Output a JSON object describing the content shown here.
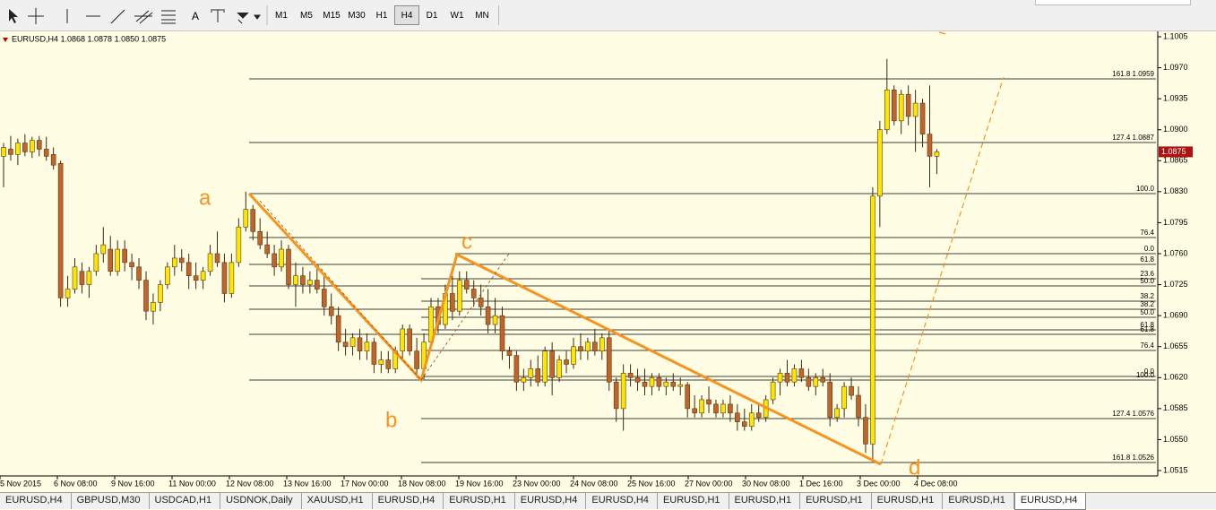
{
  "toolbar": {
    "text_tool": "A",
    "timeframes": [
      "M1",
      "M5",
      "M15",
      "M30",
      "H1",
      "H4",
      "D1",
      "W1",
      "MN"
    ],
    "active_timeframe": 5
  },
  "chart_data": {
    "type": "candlestick",
    "title": "EURUSD,H4 1.0868 1.0878 1.0850 1.0875",
    "ylim": [
      1.0515,
      1.1005
    ],
    "yticks": [
      1.1005,
      {
        "value": 1.097,
        "label": "1.0970"
      },
      1.0935,
      {
        "value": 1.09,
        "label": "1.0900"
      },
      1.0865,
      {
        "value": 1.083,
        "label": "1.0830"
      },
      1.0795,
      {
        "value": 1.076,
        "label": "1.0760"
      },
      1.0725,
      {
        "value": 1.069,
        "label": "1.0690"
      },
      1.0655,
      {
        "value": 1.062,
        "label": "1.0620"
      },
      1.0585,
      {
        "value": 1.055,
        "label": "1.0550"
      },
      1.0515
    ],
    "current_price": 1.0875,
    "x_labels": [
      "5 Nov 2015",
      "6 Nov 08:00",
      "9 Nov 16:00",
      "11 Nov 00:00",
      "12 Nov 08:00",
      "13 Nov 16:00",
      "17 Nov 00:00",
      "18 Nov 08:00",
      "19 Nov 16:00",
      "23 Nov 00:00",
      "24 Nov 08:00",
      "25 Nov 16:00",
      "27 Nov 00:00",
      "30 Nov 08:00",
      "1 Dec 16:00",
      "3 Dec 00:00",
      "4 Dec 08:00"
    ],
    "bull_color": "#ffe600",
    "bear_color": "#c0642c",
    "pattern_color": "#f7931e",
    "ohlc": [
      [
        1.087,
        1.0885,
        1.0835,
        1.088
      ],
      [
        1.0878,
        1.0893,
        1.0865,
        1.0872
      ],
      [
        1.0872,
        1.089,
        1.086,
        1.0885
      ],
      [
        1.0885,
        1.0895,
        1.087,
        1.0875
      ],
      [
        1.0875,
        1.0892,
        1.0868,
        1.0888
      ],
      [
        1.0888,
        1.0893,
        1.087,
        1.0878
      ],
      [
        1.0878,
        1.0892,
        1.0865,
        1.087
      ],
      [
        1.0872,
        1.088,
        1.0855,
        1.086
      ],
      [
        1.0862,
        1.0865,
        1.07,
        1.071
      ],
      [
        1.071,
        1.0735,
        1.07,
        1.072
      ],
      [
        1.072,
        1.0755,
        1.0715,
        1.0745
      ],
      [
        1.074,
        1.075,
        1.0715,
        1.0725
      ],
      [
        1.0725,
        1.0745,
        1.071,
        1.074
      ],
      [
        1.074,
        1.077,
        1.0735,
        1.076
      ],
      [
        1.076,
        1.079,
        1.075,
        1.077
      ],
      [
        1.0765,
        1.078,
        1.0735,
        1.074
      ],
      [
        1.074,
        1.0775,
        1.0735,
        1.0765
      ],
      [
        1.0765,
        1.0775,
        1.074,
        1.075
      ],
      [
        1.075,
        1.076,
        1.073,
        1.0745
      ],
      [
        1.0745,
        1.0755,
        1.072,
        1.073
      ],
      [
        1.073,
        1.074,
        1.0685,
        1.0695
      ],
      [
        1.0695,
        1.0715,
        1.068,
        1.0705
      ],
      [
        1.0705,
        1.073,
        1.0695,
        1.0725
      ],
      [
        1.0725,
        1.075,
        1.072,
        1.0745
      ],
      [
        1.0745,
        1.077,
        1.0735,
        1.0755
      ],
      [
        1.0755,
        1.0765,
        1.074,
        1.075
      ],
      [
        1.075,
        1.076,
        1.072,
        1.0735
      ],
      [
        1.0735,
        1.075,
        1.072,
        1.073
      ],
      [
        1.073,
        1.0745,
        1.072,
        1.074
      ],
      [
        1.074,
        1.077,
        1.0735,
        1.076
      ],
      [
        1.076,
        1.0785,
        1.0745,
        1.075
      ],
      [
        1.075,
        1.076,
        1.0705,
        1.0715
      ],
      [
        1.0715,
        1.076,
        1.071,
        1.075
      ],
      [
        1.075,
        1.08,
        1.0745,
        1.079
      ],
      [
        1.079,
        1.083,
        1.0785,
        1.081
      ],
      [
        1.081,
        1.0815,
        1.0775,
        1.0785
      ],
      [
        1.0785,
        1.08,
        1.0765,
        1.077
      ],
      [
        1.077,
        1.0785,
        1.0755,
        1.076
      ],
      [
        1.076,
        1.077,
        1.0735,
        1.0745
      ],
      [
        1.0745,
        1.0775,
        1.074,
        1.0765
      ],
      [
        1.0765,
        1.077,
        1.072,
        1.0725
      ],
      [
        1.0725,
        1.075,
        1.07,
        1.0735
      ],
      [
        1.0735,
        1.0745,
        1.0715,
        1.0725
      ],
      [
        1.0725,
        1.074,
        1.0715,
        1.073
      ],
      [
        1.073,
        1.0745,
        1.0715,
        1.072
      ],
      [
        1.072,
        1.0735,
        1.069,
        1.07
      ],
      [
        1.07,
        1.0715,
        1.068,
        1.069
      ],
      [
        1.069,
        1.07,
        1.065,
        1.066
      ],
      [
        1.066,
        1.0675,
        1.0645,
        1.0655
      ],
      [
        1.0655,
        1.067,
        1.0645,
        1.0665
      ],
      [
        1.0665,
        1.0675,
        1.064,
        1.065
      ],
      [
        1.065,
        1.067,
        1.064,
        1.066
      ],
      [
        1.066,
        1.0665,
        1.0625,
        1.0635
      ],
      [
        1.0635,
        1.065,
        1.0625,
        1.064
      ],
      [
        1.064,
        1.065,
        1.0625,
        1.063
      ],
      [
        1.063,
        1.0655,
        1.0625,
        1.065
      ],
      [
        1.065,
        1.068,
        1.064,
        1.0675
      ],
      [
        1.0675,
        1.068,
        1.0645,
        1.065
      ],
      [
        1.065,
        1.0665,
        1.062,
        1.063
      ],
      [
        1.063,
        1.067,
        1.0618,
        1.066
      ],
      [
        1.066,
        1.071,
        1.0655,
        1.07
      ],
      [
        1.07,
        1.071,
        1.067,
        1.068
      ],
      [
        1.068,
        1.0725,
        1.0675,
        1.0715
      ],
      [
        1.0715,
        1.0735,
        1.0685,
        1.0695
      ],
      [
        1.0695,
        1.074,
        1.069,
        1.073
      ],
      [
        1.073,
        1.074,
        1.0715,
        1.072
      ],
      [
        1.072,
        1.073,
        1.07,
        1.071
      ],
      [
        1.071,
        1.0725,
        1.069,
        1.07
      ],
      [
        1.07,
        1.072,
        1.067,
        1.068
      ],
      [
        1.068,
        1.071,
        1.067,
        1.069
      ],
      [
        1.069,
        1.07,
        1.064,
        1.065
      ],
      [
        1.065,
        1.0655,
        1.063,
        1.0645
      ],
      [
        1.0645,
        1.065,
        1.0605,
        1.0615
      ],
      [
        1.0615,
        1.063,
        1.0605,
        1.062
      ],
      [
        1.062,
        1.064,
        1.061,
        1.063
      ],
      [
        1.063,
        1.0645,
        1.061,
        1.0615
      ],
      [
        1.0615,
        1.0655,
        1.061,
        1.065
      ],
      [
        1.065,
        1.066,
        1.06,
        1.062
      ],
      [
        1.062,
        1.0645,
        1.0615,
        1.064
      ],
      [
        1.064,
        1.065,
        1.0625,
        1.0635
      ],
      [
        1.0635,
        1.0665,
        1.063,
        1.0655
      ],
      [
        1.0655,
        1.067,
        1.064,
        1.065
      ],
      [
        1.065,
        1.0665,
        1.064,
        1.066
      ],
      [
        1.066,
        1.0675,
        1.0645,
        1.065
      ],
      [
        1.065,
        1.067,
        1.064,
        1.0665
      ],
      [
        1.0665,
        1.0675,
        1.0605,
        1.0615
      ],
      [
        1.0615,
        1.062,
        1.057,
        1.0585
      ],
      [
        1.0585,
        1.0635,
        1.056,
        1.0625
      ],
      [
        1.0625,
        1.0635,
        1.061,
        1.062
      ],
      [
        1.062,
        1.063,
        1.0605,
        1.0615
      ],
      [
        1.0615,
        1.063,
        1.06,
        1.061
      ],
      [
        1.061,
        1.0625,
        1.06,
        1.062
      ],
      [
        1.062,
        1.0625,
        1.0605,
        1.061
      ],
      [
        1.061,
        1.062,
        1.06,
        1.0615
      ],
      [
        1.0615,
        1.0625,
        1.0605,
        1.061
      ],
      [
        1.061,
        1.062,
        1.06,
        1.0612
      ],
      [
        1.0612,
        1.0615,
        1.0575,
        1.0585
      ],
      [
        1.0585,
        1.06,
        1.0575,
        1.058
      ],
      [
        1.058,
        1.06,
        1.0575,
        1.0595
      ],
      [
        1.0595,
        1.061,
        1.058,
        1.059
      ],
      [
        1.059,
        1.0595,
        1.0575,
        1.058
      ],
      [
        1.058,
        1.0595,
        1.0575,
        1.059
      ],
      [
        1.059,
        1.06,
        1.057,
        1.058
      ],
      [
        1.058,
        1.059,
        1.056,
        1.057
      ],
      [
        1.057,
        1.0585,
        1.056,
        1.0565
      ],
      [
        1.0565,
        1.059,
        1.056,
        1.058
      ],
      [
        1.058,
        1.059,
        1.057,
        1.0575
      ],
      [
        1.0575,
        1.06,
        1.057,
        1.0595
      ],
      [
        1.0595,
        1.062,
        1.059,
        1.0615
      ],
      [
        1.0615,
        1.063,
        1.06,
        1.0625
      ],
      [
        1.0625,
        1.064,
        1.061,
        1.0615
      ],
      [
        1.0615,
        1.0635,
        1.061,
        1.063
      ],
      [
        1.063,
        1.064,
        1.0615,
        1.062
      ],
      [
        1.062,
        1.063,
        1.0605,
        1.061
      ],
      [
        1.061,
        1.0625,
        1.06,
        1.062
      ],
      [
        1.062,
        1.063,
        1.061,
        1.0615
      ],
      [
        1.0615,
        1.0625,
        1.0565,
        1.0575
      ],
      [
        1.0575,
        1.059,
        1.057,
        1.0585
      ],
      [
        1.0585,
        1.0615,
        1.0575,
        1.061
      ],
      [
        1.061,
        1.062,
        1.0595,
        1.06
      ],
      [
        1.06,
        1.061,
        1.0565,
        1.0575
      ],
      [
        1.0575,
        1.059,
        1.0535,
        1.0545
      ],
      [
        1.0545,
        1.0835,
        1.0525,
        1.0825
      ],
      [
        1.0825,
        1.091,
        1.079,
        1.09
      ],
      [
        1.09,
        1.098,
        1.0895,
        1.0945
      ],
      [
        1.0945,
        1.095,
        1.0905,
        1.091
      ],
      [
        1.091,
        1.0945,
        1.0895,
        1.094
      ],
      [
        1.094,
        1.095,
        1.0905,
        1.0915
      ],
      [
        1.0915,
        1.0945,
        1.0875,
        1.093
      ],
      [
        1.093,
        1.0935,
        1.088,
        1.0895
      ],
      [
        1.0895,
        1.095,
        1.0835,
        1.087
      ],
      [
        1.087,
        1.0878,
        1.085,
        1.0875
      ]
    ],
    "fib_levels": [
      "161.8 1.0959",
      "127.4 1.0887",
      "100.0",
      "76.4",
      "0.0",
      "61.8",
      "23.6",
      "50.0",
      "38.2",
      "38.2",
      "50.0",
      "61.8",
      "61.8",
      "76.4",
      "0.0",
      "100.0",
      "127.4 1.0576",
      "161.8 1.0526"
    ],
    "pattern_points": [
      "a",
      "b",
      "c",
      "d"
    ]
  },
  "tabs": [
    "EURUSD,H4",
    "GBPUSD,M30",
    "USDCAD,H1",
    "USDNOK,Daily",
    "XAUUSD,H1",
    "EURUSD,H4",
    "EURUSD,H1",
    "EURUSD,H4",
    "EURUSD,H4",
    "EURUSD,H1",
    "EURUSD,H1",
    "EURUSD,H1",
    "EURUSD,H1",
    "EURUSD,H1",
    "EURUSD,H4"
  ],
  "active_tab": 14
}
